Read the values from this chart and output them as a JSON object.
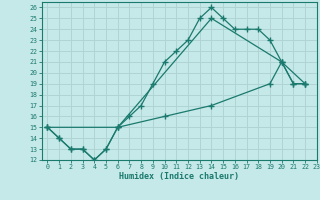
{
  "xlabel": "Humidex (Indice chaleur)",
  "xlim": [
    -0.5,
    23
  ],
  "ylim": [
    12,
    26.5
  ],
  "xticks": [
    0,
    1,
    2,
    3,
    4,
    5,
    6,
    7,
    8,
    9,
    10,
    11,
    12,
    13,
    14,
    15,
    16,
    17,
    18,
    19,
    20,
    21,
    22,
    23
  ],
  "yticks": [
    12,
    13,
    14,
    15,
    16,
    17,
    18,
    19,
    20,
    21,
    22,
    23,
    24,
    25,
    26
  ],
  "bg_color": "#c5e8e8",
  "line_color": "#1a7a6e",
  "grid_color": "#b0d4d4",
  "line1_x": [
    0,
    1,
    2,
    3,
    4,
    5,
    6,
    7,
    8,
    9,
    10,
    11,
    12,
    13,
    14,
    15,
    16,
    17,
    18,
    19,
    20,
    21,
    22
  ],
  "line1_y": [
    15,
    14,
    13,
    13,
    12,
    13,
    15,
    16,
    17,
    19,
    21,
    22,
    23,
    25,
    26,
    25,
    24,
    24,
    24,
    23,
    21,
    19,
    19
  ],
  "line2_x": [
    0,
    1,
    2,
    3,
    4,
    5,
    6,
    14,
    20,
    21,
    22
  ],
  "line2_y": [
    15,
    14,
    13,
    13,
    12,
    13,
    15,
    25,
    21,
    19,
    19
  ],
  "line3_x": [
    0,
    6,
    10,
    14,
    19,
    20,
    22
  ],
  "line3_y": [
    15,
    15,
    16,
    17,
    19,
    21,
    19
  ]
}
